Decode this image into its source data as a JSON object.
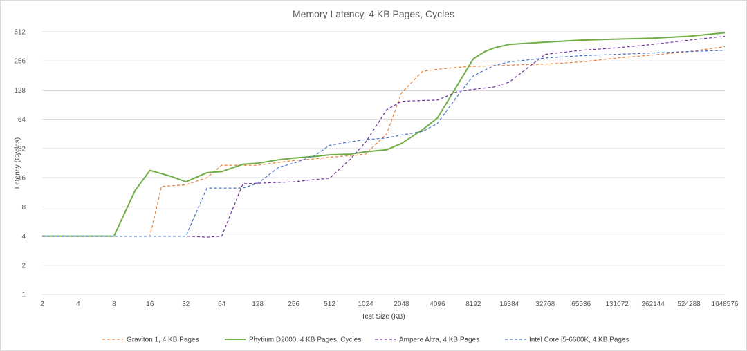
{
  "chart_data": {
    "type": "line",
    "title": "Memory Latency, 4 KB Pages, Cycles",
    "xlabel": "Test Size (KB)",
    "ylabel": "Latency (Cycles)",
    "x_scale": "log2",
    "y_scale": "log2",
    "xlim": [
      2,
      1048576
    ],
    "ylim": [
      1,
      512
    ],
    "x_ticks": [
      "2",
      "4",
      "8",
      "16",
      "32",
      "64",
      "128",
      "256",
      "512",
      "1024",
      "2048",
      "4096",
      "8192",
      "16384",
      "32768",
      "65536",
      "131072",
      "262144",
      "524288",
      "1048576"
    ],
    "y_ticks": [
      "1",
      "2",
      "4",
      "8",
      "16",
      "32",
      "64",
      "128",
      "256",
      "512"
    ],
    "grid": "horizontal",
    "legend_position": "bottom",
    "series": [
      {
        "name": "Graviton 1, 4 KB Pages",
        "color": "#ed7d31",
        "dash": true,
        "points": [
          [
            2,
            4
          ],
          [
            4,
            4
          ],
          [
            8,
            4
          ],
          [
            12,
            4
          ],
          [
            16,
            4
          ],
          [
            20,
            13
          ],
          [
            24,
            13.2
          ],
          [
            32,
            13.5
          ],
          [
            48,
            16
          ],
          [
            64,
            21.5
          ],
          [
            96,
            21.5
          ],
          [
            128,
            21.5
          ],
          [
            192,
            23
          ],
          [
            256,
            24
          ],
          [
            384,
            25
          ],
          [
            512,
            26
          ],
          [
            768,
            27
          ],
          [
            1024,
            28
          ],
          [
            1536,
            45
          ],
          [
            2048,
            120
          ],
          [
            3072,
            200
          ],
          [
            4096,
            210
          ],
          [
            6144,
            220
          ],
          [
            8192,
            225
          ],
          [
            12288,
            228
          ],
          [
            16384,
            232
          ],
          [
            32768,
            238
          ],
          [
            65536,
            250
          ],
          [
            131072,
            275
          ],
          [
            262144,
            295
          ],
          [
            524288,
            320
          ],
          [
            1048576,
            360
          ]
        ]
      },
      {
        "name": "Phytium D2000, 4 KB Pages, Cycles",
        "color": "#70ad47",
        "dash": false,
        "points": [
          [
            2,
            4
          ],
          [
            4,
            4
          ],
          [
            8,
            4
          ],
          [
            12,
            11.8
          ],
          [
            16,
            19
          ],
          [
            24,
            16.5
          ],
          [
            32,
            14.5
          ],
          [
            48,
            18
          ],
          [
            64,
            18.5
          ],
          [
            96,
            22
          ],
          [
            128,
            22.5
          ],
          [
            192,
            24.5
          ],
          [
            256,
            25.5
          ],
          [
            384,
            26.5
          ],
          [
            512,
            27.5
          ],
          [
            768,
            28
          ],
          [
            1024,
            29.5
          ],
          [
            1536,
            31
          ],
          [
            2048,
            36
          ],
          [
            3072,
            50
          ],
          [
            4096,
            66
          ],
          [
            6144,
            150
          ],
          [
            8192,
            270
          ],
          [
            10240,
            320
          ],
          [
            12288,
            350
          ],
          [
            16384,
            380
          ],
          [
            32768,
            400
          ],
          [
            65536,
            420
          ],
          [
            131072,
            430
          ],
          [
            262144,
            440
          ],
          [
            524288,
            460
          ],
          [
            1048576,
            500
          ]
        ]
      },
      {
        "name": "Ampere Altra, 4 KB Pages",
        "color": "#7030a0",
        "dash": true,
        "points": [
          [
            2,
            4
          ],
          [
            4,
            4
          ],
          [
            8,
            4
          ],
          [
            16,
            4
          ],
          [
            32,
            4
          ],
          [
            48,
            3.9
          ],
          [
            64,
            4
          ],
          [
            96,
            13.8
          ],
          [
            128,
            14
          ],
          [
            192,
            14.3
          ],
          [
            256,
            14.5
          ],
          [
            384,
            15.3
          ],
          [
            512,
            15.8
          ],
          [
            768,
            25
          ],
          [
            1024,
            37
          ],
          [
            1536,
            80
          ],
          [
            2048,
            98
          ],
          [
            3072,
            100
          ],
          [
            4096,
            101
          ],
          [
            6144,
            125
          ],
          [
            8192,
            130
          ],
          [
            12288,
            138
          ],
          [
            16384,
            155
          ],
          [
            32768,
            300
          ],
          [
            65536,
            330
          ],
          [
            131072,
            350
          ],
          [
            262144,
            380
          ],
          [
            524288,
            420
          ],
          [
            1048576,
            460
          ]
        ]
      },
      {
        "name": "Intel Core i5-6600K, 4 KB Pages",
        "color": "#4472c4",
        "dash": true,
        "points": [
          [
            2,
            4
          ],
          [
            4,
            4
          ],
          [
            8,
            4
          ],
          [
            16,
            4
          ],
          [
            32,
            4
          ],
          [
            48,
            12.5
          ],
          [
            64,
            12.5
          ],
          [
            96,
            12.5
          ],
          [
            128,
            14
          ],
          [
            192,
            20.5
          ],
          [
            256,
            22.5
          ],
          [
            384,
            27
          ],
          [
            512,
            34.5
          ],
          [
            768,
            37.5
          ],
          [
            1024,
            39.5
          ],
          [
            1536,
            41
          ],
          [
            2048,
            44
          ],
          [
            3072,
            48
          ],
          [
            4096,
            58
          ],
          [
            6144,
            115
          ],
          [
            8192,
            180
          ],
          [
            12288,
            230
          ],
          [
            16384,
            250
          ],
          [
            32768,
            275
          ],
          [
            65536,
            290
          ],
          [
            131072,
            300
          ],
          [
            262144,
            310
          ],
          [
            524288,
            320
          ],
          [
            1048576,
            330
          ]
        ]
      }
    ]
  }
}
